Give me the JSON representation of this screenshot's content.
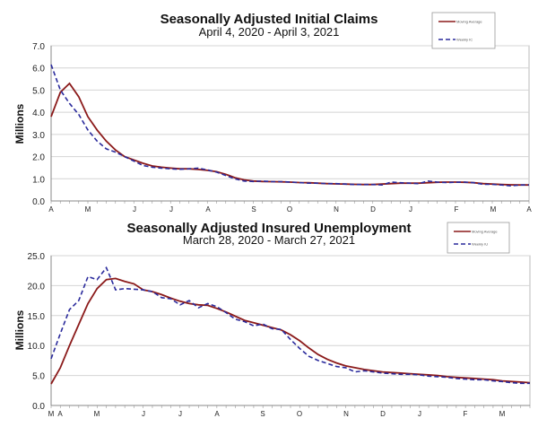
{
  "colors": {
    "moving_average": "#8b1a1a",
    "weekly": "#2a2a9c",
    "grid": "#d4d4d4"
  },
  "chart_data": [
    {
      "type": "line",
      "title": "Seasonally Adjusted Initial Claims",
      "subtitle": "April 4, 2020 - April 3, 2021",
      "ylabel": "Millions",
      "ylim": [
        0,
        7
      ],
      "yticks": [
        "0.0",
        "1.0",
        "2.0",
        "3.0",
        "4.0",
        "5.0",
        "6.0",
        "7.0"
      ],
      "xtick_labels": [
        "A",
        "M",
        "J",
        "J",
        "A",
        "S",
        "O",
        "N",
        "D",
        "J",
        "F",
        "M",
        "A"
      ],
      "grid": true,
      "legend_position": "top-right",
      "series": [
        {
          "name": "Moving Average",
          "style": "solid",
          "values": [
            3.8,
            4.9,
            5.3,
            4.7,
            3.8,
            3.2,
            2.7,
            2.3,
            2.0,
            1.85,
            1.7,
            1.58,
            1.52,
            1.48,
            1.45,
            1.45,
            1.42,
            1.38,
            1.32,
            1.2,
            1.05,
            0.95,
            0.9,
            0.88,
            0.87,
            0.86,
            0.85,
            0.83,
            0.82,
            0.8,
            0.78,
            0.77,
            0.76,
            0.75,
            0.74,
            0.74,
            0.76,
            0.78,
            0.8,
            0.8,
            0.8,
            0.82,
            0.84,
            0.85,
            0.85,
            0.84,
            0.82,
            0.78,
            0.76,
            0.74,
            0.73,
            0.72,
            0.72
          ]
        },
        {
          "name": "Weekly IC",
          "style": "dashed",
          "values": [
            6.15,
            5.0,
            4.4,
            3.9,
            3.2,
            2.7,
            2.35,
            2.2,
            2.0,
            1.8,
            1.6,
            1.52,
            1.48,
            1.45,
            1.43,
            1.45,
            1.48,
            1.4,
            1.3,
            1.15,
            1.0,
            0.9,
            0.88,
            0.9,
            0.87,
            0.87,
            0.85,
            0.83,
            0.8,
            0.8,
            0.78,
            0.78,
            0.76,
            0.74,
            0.74,
            0.74,
            0.72,
            0.85,
            0.82,
            0.8,
            0.78,
            0.9,
            0.85,
            0.83,
            0.84,
            0.85,
            0.82,
            0.75,
            0.75,
            0.72,
            0.68,
            0.72,
            0.72
          ]
        }
      ]
    },
    {
      "type": "line",
      "title": "Seasonally Adjusted Insured Unemployment",
      "subtitle": "March 28, 2020 - March 27, 2021",
      "ylabel": "Millions",
      "ylim": [
        0,
        25
      ],
      "yticks": [
        "0.0",
        "5.0",
        "10.0",
        "15.0",
        "20.0",
        "25.0"
      ],
      "xtick_labels": [
        "M",
        "A",
        "M",
        "J",
        "J",
        "A",
        "S",
        "O",
        "N",
        "D",
        "J",
        "F",
        "M"
      ],
      "grid": true,
      "legend_position": "top-right",
      "series": [
        {
          "name": "Moving Average",
          "style": "solid",
          "values": [
            3.6,
            6.3,
            10,
            13.5,
            17,
            19.5,
            21,
            21.2,
            20.7,
            20.3,
            19.3,
            19,
            18.5,
            17.9,
            17.4,
            17,
            16.8,
            16.7,
            16.2,
            15.6,
            14.9,
            14.2,
            13.8,
            13.4,
            13.0,
            12.6,
            11.8,
            10.8,
            9.6,
            8.5,
            7.7,
            7.1,
            6.6,
            6.3,
            6.0,
            5.8,
            5.6,
            5.5,
            5.4,
            5.3,
            5.2,
            5.1,
            5.0,
            4.8,
            4.7,
            4.6,
            4.5,
            4.4,
            4.3,
            4.1,
            4.0,
            3.9,
            3.8
          ]
        },
        {
          "name": "Weekly IU",
          "style": "dashed",
          "values": [
            7.8,
            12,
            16,
            17.5,
            21.5,
            21,
            23,
            19.3,
            19.5,
            19.4,
            19.3,
            19,
            18,
            17.8,
            16.8,
            17.5,
            16.3,
            17,
            16.5,
            15.5,
            14.4,
            14,
            13.3,
            13.6,
            12.8,
            12.7,
            11,
            9.5,
            8.2,
            7.5,
            7,
            6.5,
            6.3,
            5.6,
            5.8,
            5.6,
            5.4,
            5.3,
            5.2,
            5.2,
            5.1,
            4.9,
            4.8,
            4.7,
            4.5,
            4.4,
            4.3,
            4.3,
            4.1,
            4.0,
            3.8,
            3.7,
            3.7
          ]
        }
      ]
    }
  ]
}
